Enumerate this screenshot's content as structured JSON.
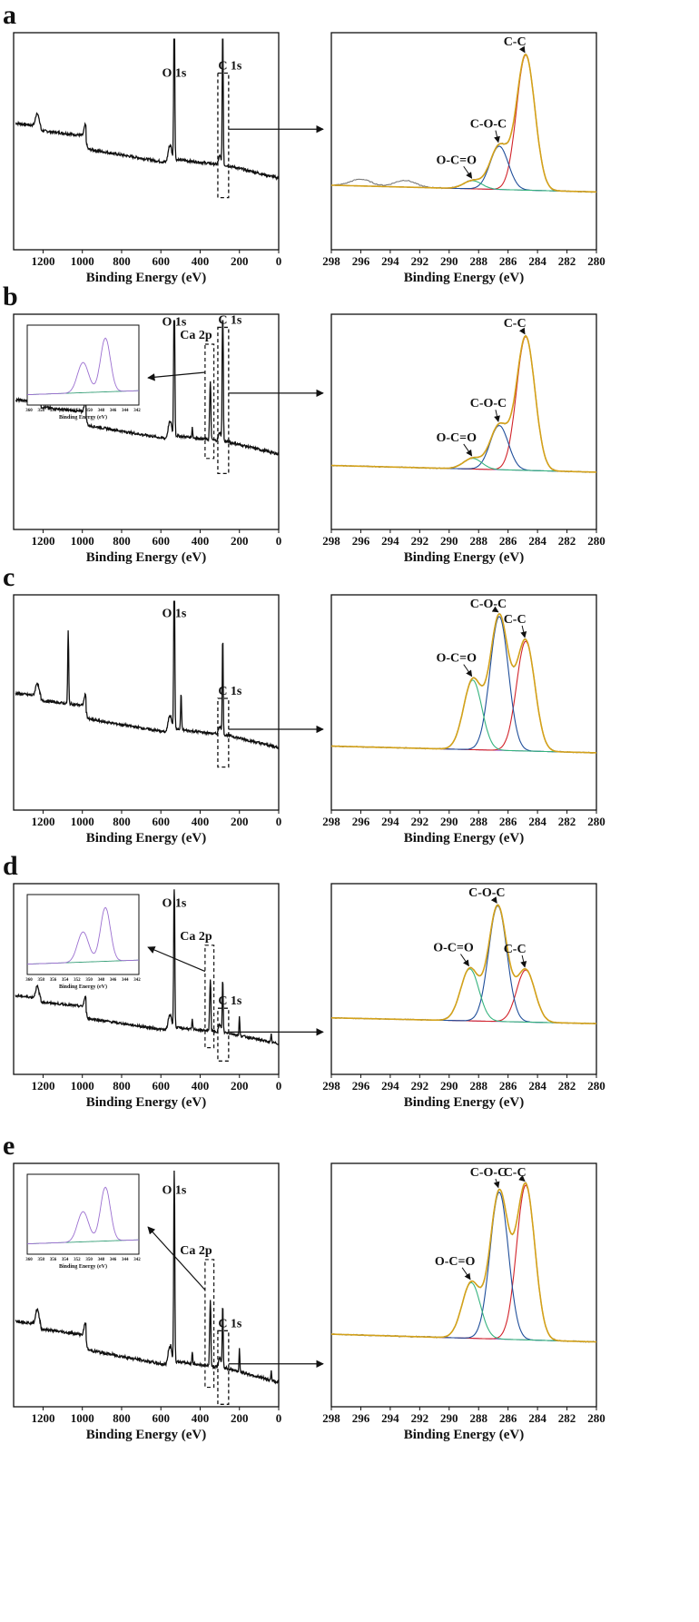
{
  "colors": {
    "envelope": "#d4a21a",
    "cc": "#d2232a",
    "coc": "#1f4e9a",
    "oco": "#35b37e",
    "base": "#a25fd0",
    "raw": "#7a7a7a",
    "survey": "#111111",
    "ca1": "#9b6fd0",
    "ca2": "#3aa07a"
  },
  "common": {
    "xlabel": "Binding Energy (eV)"
  },
  "chart_data": [
    {
      "panel": "a",
      "type": "line",
      "subtype": "survey",
      "xlabel": "Binding Energy (eV)",
      "xlim": [
        1350,
        0
      ],
      "ticks": [
        1200,
        1000,
        800,
        600,
        400,
        200,
        0
      ],
      "peaks": [
        {
          "label": "O 1s",
          "energy": 532
        },
        {
          "label": "C 1s",
          "energy": 285
        }
      ],
      "inset": false
    },
    {
      "panel": "a",
      "type": "line",
      "subtype": "C1s",
      "xlabel": "Binding Energy (eV)",
      "xlim": [
        298,
        280
      ],
      "ticks": [
        298,
        296,
        294,
        292,
        290,
        288,
        286,
        284,
        282,
        280
      ],
      "components": [
        {
          "label": "C-C",
          "center": 284.8,
          "height": 1.0
        },
        {
          "label": "C-O-C",
          "center": 286.6,
          "height": 0.32
        },
        {
          "label": "O-C=O",
          "center": 288.4,
          "height": 0.06
        }
      ],
      "satellites": [
        {
          "center": 296.0,
          "height": 0.05
        },
        {
          "center": 293.0,
          "height": 0.05
        }
      ]
    },
    {
      "panel": "b",
      "type": "line",
      "subtype": "survey",
      "xlabel": "Binding Energy (eV)",
      "xlim": [
        1350,
        0
      ],
      "ticks": [
        1200,
        1000,
        800,
        600,
        400,
        200,
        0
      ],
      "peaks": [
        {
          "label": "O 1s",
          "energy": 532
        },
        {
          "label": "C 1s",
          "energy": 285
        },
        {
          "label": "Ca 2p",
          "energy": 347
        }
      ],
      "inset": true,
      "inset_ticks": [
        "360",
        "358",
        "356",
        "354",
        "352",
        "350",
        "348",
        "346",
        "344",
        "342"
      ],
      "inset_xlabel": "Binding Energy (eV)"
    },
    {
      "panel": "b",
      "type": "line",
      "subtype": "C1s",
      "xlabel": "Binding Energy (eV)",
      "xlim": [
        298,
        280
      ],
      "ticks": [
        298,
        296,
        294,
        292,
        290,
        288,
        286,
        284,
        282,
        280
      ],
      "components": [
        {
          "label": "C-C",
          "center": 284.8,
          "height": 1.0
        },
        {
          "label": "C-O-C",
          "center": 286.6,
          "height": 0.33
        },
        {
          "label": "O-C=O",
          "center": 288.4,
          "height": 0.08
        }
      ]
    },
    {
      "panel": "c",
      "type": "line",
      "subtype": "survey",
      "xlabel": "Binding Energy (eV)",
      "xlim": [
        1350,
        0
      ],
      "ticks": [
        1200,
        1000,
        800,
        600,
        400,
        200,
        0
      ],
      "peaks": [
        {
          "label": "O 1s",
          "energy": 532
        },
        {
          "label": "C 1s",
          "energy": 285
        }
      ],
      "inset": false
    },
    {
      "panel": "c",
      "type": "line",
      "subtype": "C1s",
      "xlabel": "Binding Energy (eV)",
      "xlim": [
        298,
        280
      ],
      "ticks": [
        298,
        296,
        294,
        292,
        290,
        288,
        286,
        284,
        282,
        280
      ],
      "components": [
        {
          "label": "C-C",
          "center": 284.8,
          "height": 0.82
        },
        {
          "label": "C-O-C",
          "center": 286.6,
          "height": 1.0
        },
        {
          "label": "O-C=O",
          "center": 288.4,
          "height": 0.52
        }
      ]
    },
    {
      "panel": "d",
      "type": "line",
      "subtype": "survey",
      "xlabel": "Binding Energy (eV)",
      "xlim": [
        1350,
        0
      ],
      "ticks": [
        1200,
        1000,
        800,
        600,
        400,
        200,
        0
      ],
      "peaks": [
        {
          "label": "O 1s",
          "energy": 532
        },
        {
          "label": "C 1s",
          "energy": 285
        },
        {
          "label": "Ca 2p",
          "energy": 347
        }
      ],
      "inset": true,
      "inset_ticks": [
        "360",
        "358",
        "356",
        "354",
        "352",
        "350",
        "348",
        "346",
        "344",
        "342"
      ],
      "inset_xlabel": "Binding Energy (eV)"
    },
    {
      "panel": "d",
      "type": "line",
      "subtype": "C1s",
      "xlabel": "Binding Energy (eV)",
      "xlim": [
        298,
        280
      ],
      "ticks": [
        298,
        296,
        294,
        292,
        290,
        288,
        286,
        284,
        282,
        280
      ],
      "components": [
        {
          "label": "C-C",
          "center": 284.8,
          "height": 0.45
        },
        {
          "label": "C-O-C",
          "center": 286.7,
          "height": 1.0
        },
        {
          "label": "O-C=O",
          "center": 288.6,
          "height": 0.45
        }
      ]
    },
    {
      "panel": "e",
      "type": "line",
      "subtype": "survey",
      "xlabel": "Binding Energy (eV)",
      "xlim": [
        1350,
        0
      ],
      "ticks": [
        1200,
        1000,
        800,
        600,
        400,
        200,
        0
      ],
      "peaks": [
        {
          "label": "O 1s",
          "energy": 532
        },
        {
          "label": "C 1s",
          "energy": 285
        },
        {
          "label": "Ca 2p",
          "energy": 347
        }
      ],
      "inset": true,
      "inset_ticks": [
        "360",
        "358",
        "356",
        "354",
        "352",
        "350",
        "348",
        "346",
        "344",
        "342"
      ],
      "inset_xlabel": "Binding Energy (eV)"
    },
    {
      "panel": "e",
      "type": "line",
      "subtype": "C1s",
      "xlabel": "Binding Energy (eV)",
      "xlim": [
        298,
        280
      ],
      "ticks": [
        298,
        296,
        294,
        292,
        290,
        288,
        286,
        284,
        282,
        280
      ],
      "components": [
        {
          "label": "C-C",
          "center": 284.8,
          "height": 1.0
        },
        {
          "label": "C-O-C",
          "center": 286.6,
          "height": 0.95
        },
        {
          "label": "O-C=O",
          "center": 288.5,
          "height": 0.36
        }
      ]
    }
  ]
}
